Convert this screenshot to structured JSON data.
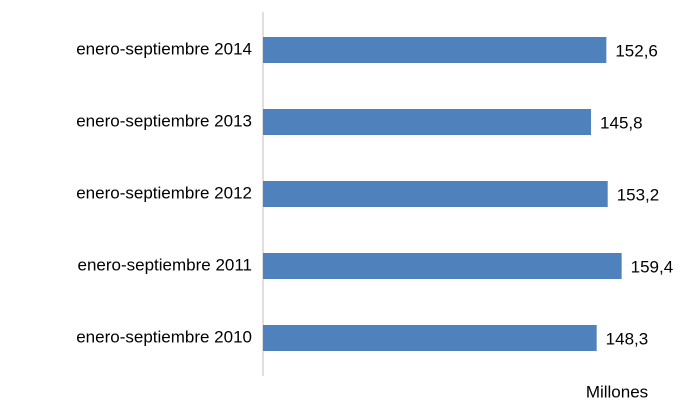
{
  "chart_data": {
    "type": "barh",
    "categories": [
      "enero-septiembre 2014",
      "enero-septiembre 2013",
      "enero-septiembre 2012",
      "enero-septiembre 2011",
      "enero-septiembre 2010"
    ],
    "values": [
      152.6,
      145.8,
      153.2,
      159.4,
      148.3
    ],
    "value_labels": [
      "152,6",
      "145,8",
      "153,2",
      "159,4",
      "148,3"
    ],
    "color": "#4f81bd",
    "xlim": [
      0,
      180
    ],
    "xlabel": "Millones"
  }
}
